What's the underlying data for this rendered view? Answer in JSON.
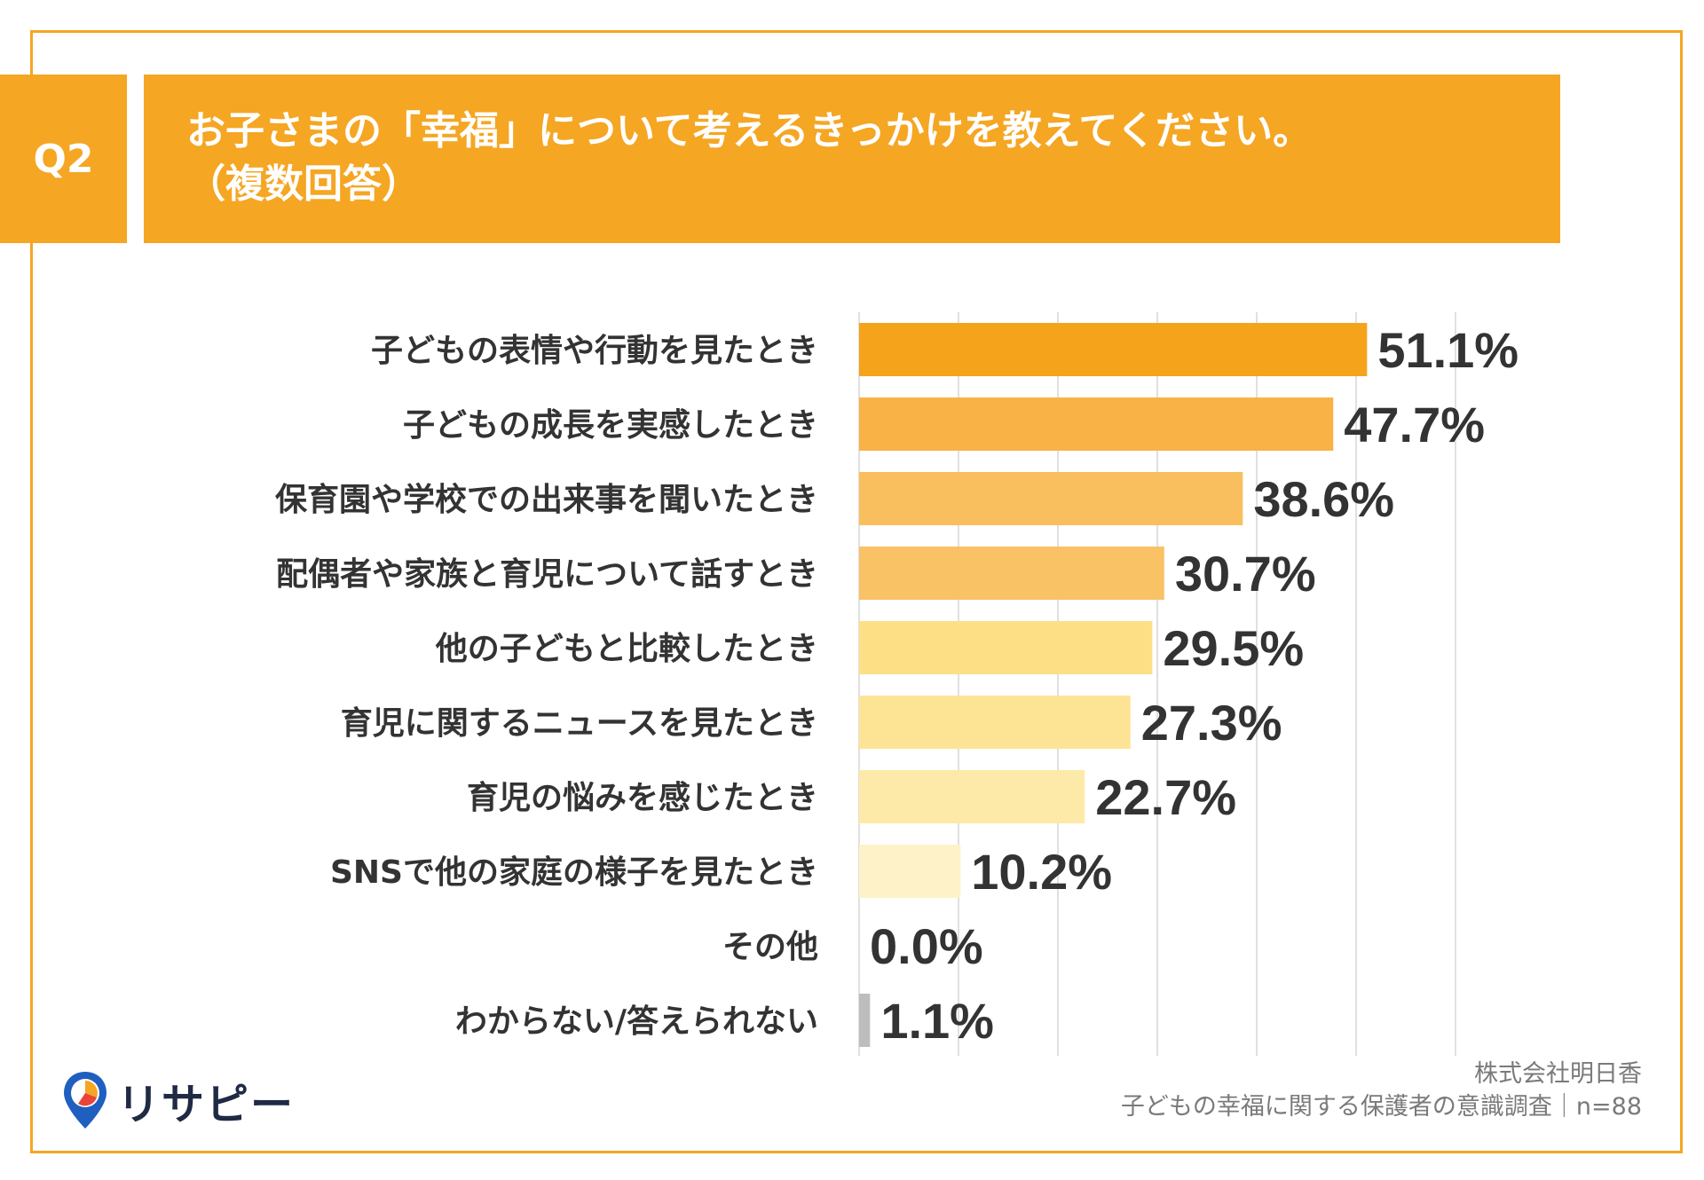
{
  "header": {
    "badge": "Q2",
    "title_line1": "お子さまの「幸福」について考えるきっかけを教えてください。",
    "title_line2": "（複数回答）"
  },
  "chart_data": {
    "type": "bar",
    "orientation": "horizontal",
    "categories": [
      "子どもの表情や行動を見たとき",
      "子どもの成長を実感したとき",
      "保育園や学校での出来事を聞いたとき",
      "配偶者や家族と育児について話すとき",
      "他の子どもと比較したとき",
      "育児に関するニュースを見たとき",
      "育児の悩みを感じたとき",
      "SNSで他の家庭の様子を見たとき",
      "その他",
      "わからない/答えられない"
    ],
    "values": [
      51.1,
      47.7,
      38.6,
      30.7,
      29.5,
      27.3,
      22.7,
      10.2,
      0.0,
      1.1
    ],
    "value_labels": [
      "51.1%",
      "47.7%",
      "38.6%",
      "30.7%",
      "29.5%",
      "27.3%",
      "22.7%",
      "10.2%",
      "0.0%",
      "1.1%"
    ],
    "colors": [
      "#f5a31a",
      "#f8b246",
      "#f9bf5e",
      "#f9c265",
      "#fde085",
      "#fde495",
      "#fde9a8",
      "#fdf2c8",
      "#fdf2c8",
      "#bdbdbd"
    ],
    "xlim": [
      0,
      60
    ],
    "grid": true
  },
  "footer": {
    "source_line1": "株式会社明日香",
    "source_line2": "子どもの幸福に関する保護者の意識調査｜n=88",
    "logo_text": "リサピー"
  }
}
